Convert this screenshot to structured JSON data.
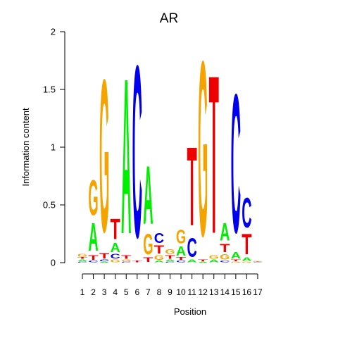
{
  "colors": {
    "A": "#00ee00",
    "C": "#0000ee",
    "G": "#f5a300",
    "T": "#ee0000",
    "axis": "#000000",
    "background": "#ffffff"
  },
  "chart_data": {
    "type": "sequence-logo",
    "title": "AR",
    "xlabel": "Position",
    "ylabel": "Information content",
    "ylim": [
      0,
      2
    ],
    "yticks": [
      0,
      0.5,
      1,
      1.5,
      2
    ],
    "ytick_labels": [
      "0",
      "0.5",
      "1",
      "1.5",
      "2"
    ],
    "positions": [
      1,
      2,
      3,
      4,
      5,
      6,
      7,
      8,
      9,
      10,
      11,
      12,
      13,
      14,
      15,
      16,
      17
    ],
    "xtick_labels": [
      "1",
      "2",
      "3",
      "4",
      "5",
      "6",
      "7",
      "8",
      "9",
      "10",
      "11",
      "12",
      "13",
      "14",
      "15",
      "16",
      "17"
    ],
    "columns": [
      [
        {
          "base": "C",
          "height": 0.01
        },
        {
          "base": "A",
          "height": 0.02
        },
        {
          "base": "T",
          "height": 0.02
        },
        {
          "base": "G",
          "height": 0.03
        }
      ],
      [
        {
          "base": "C",
          "height": 0.02
        },
        {
          "base": "T",
          "height": 0.05
        },
        {
          "base": "A",
          "height": 0.3
        },
        {
          "base": "G",
          "height": 0.38
        }
      ],
      [
        {
          "base": "A",
          "height": 0.01
        },
        {
          "base": "C",
          "height": 0.02
        },
        {
          "base": "T",
          "height": 0.06
        },
        {
          "base": "G",
          "height": 1.65
        }
      ],
      [
        {
          "base": "G",
          "height": 0.03
        },
        {
          "base": "C",
          "height": 0.05
        },
        {
          "base": "A",
          "height": 0.1
        },
        {
          "base": "T",
          "height": 0.22
        }
      ],
      [
        {
          "base": "C",
          "height": 0.01
        },
        {
          "base": "G",
          "height": 0.02
        },
        {
          "base": "T",
          "height": 0.04
        },
        {
          "base": "A",
          "height": 1.68
        }
      ],
      [
        {
          "base": "T",
          "height": 0.02
        },
        {
          "base": "C",
          "height": 1.86
        }
      ],
      [
        {
          "base": "T",
          "height": 0.05
        },
        {
          "base": "G",
          "height": 0.22
        },
        {
          "base": "A",
          "height": 0.63
        }
      ],
      [
        {
          "base": "A",
          "height": 0.02
        },
        {
          "base": "G",
          "height": 0.05
        },
        {
          "base": "T",
          "height": 0.09
        },
        {
          "base": "C",
          "height": 0.11
        }
      ],
      [
        {
          "base": "C",
          "height": 0.01
        },
        {
          "base": "A",
          "height": 0.02
        },
        {
          "base": "T",
          "height": 0.04
        },
        {
          "base": "G",
          "height": 0.05
        }
      ],
      [
        {
          "base": "C",
          "height": 0.02
        },
        {
          "base": "T",
          "height": 0.03
        },
        {
          "base": "A",
          "height": 0.1
        },
        {
          "base": "G",
          "height": 0.15
        }
      ],
      [
        {
          "base": "A",
          "height": 0.03
        },
        {
          "base": "C",
          "height": 0.2
        },
        {
          "base": "T",
          "height": 0.85
        }
      ],
      [
        {
          "base": "A",
          "height": 0.01
        },
        {
          "base": "T",
          "height": 0.02
        },
        {
          "base": "G",
          "height": 1.89
        }
      ],
      [
        {
          "base": "A",
          "height": 0.03
        },
        {
          "base": "G",
          "height": 0.04
        },
        {
          "base": "T",
          "height": 1.71
        }
      ],
      [
        {
          "base": "C",
          "height": 0.02
        },
        {
          "base": "G",
          "height": 0.06
        },
        {
          "base": "T",
          "height": 0.09
        },
        {
          "base": "A",
          "height": 0.19
        }
      ],
      [
        {
          "base": "G",
          "height": 0.01
        },
        {
          "base": "T",
          "height": 0.02
        },
        {
          "base": "A",
          "height": 0.07
        },
        {
          "base": "C",
          "height": 1.5
        }
      ],
      [
        {
          "base": "G",
          "height": 0.01
        },
        {
          "base": "A",
          "height": 0.04
        },
        {
          "base": "T",
          "height": 0.22
        },
        {
          "base": "C",
          "height": 0.32
        }
      ],
      [
        {
          "base": "C",
          "height": 0.005
        },
        {
          "base": "A",
          "height": 0.005
        },
        {
          "base": "T",
          "height": 0.005
        },
        {
          "base": "G",
          "height": 0.005
        }
      ]
    ]
  }
}
